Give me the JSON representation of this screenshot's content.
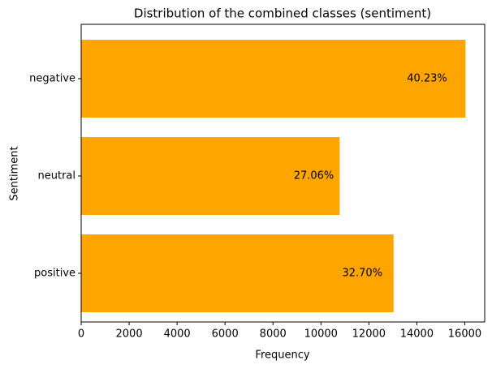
{
  "chart_data": {
    "type": "barh",
    "title": "Distribution of the combined classes (sentiment)",
    "x_label": "Frequency",
    "y_label": "Sentiment",
    "categories": [
      "negative",
      "neutral",
      "positive"
    ],
    "values": [
      16030,
      10780,
      13030
    ],
    "bar_labels": [
      "40.23%",
      "27.06%",
      "32.70%"
    ],
    "color": "#ffa500",
    "xlim": [
      0,
      16831
    ],
    "xticks": [
      0,
      2000,
      4000,
      6000,
      8000,
      10000,
      12000,
      14000,
      16000
    ]
  }
}
